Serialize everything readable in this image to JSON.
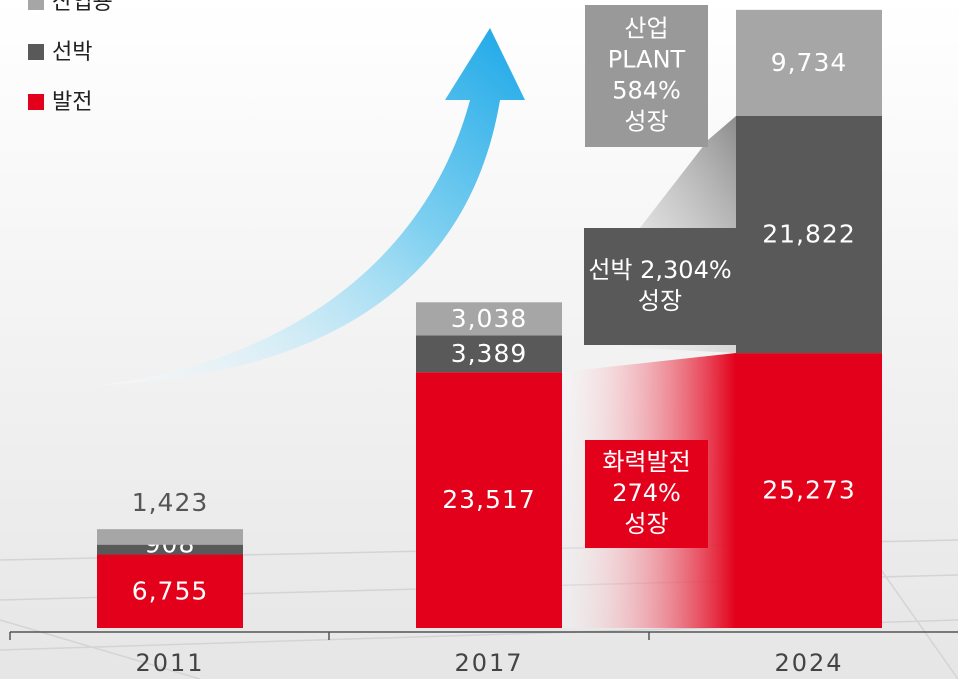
{
  "chart_data": {
    "type": "stacked_bar",
    "categories": [
      "2011",
      "2017",
      "2024"
    ],
    "series": [
      {
        "name": "발전",
        "color": "#e2001a",
        "values": [
          6755,
          23517,
          25273
        ],
        "value_labels": [
          "6,755",
          "23,517",
          "25,273"
        ]
      },
      {
        "name": "선박",
        "color": "#595959",
        "values": [
          908,
          3389,
          21822
        ],
        "value_labels": [
          "908",
          "3,389",
          "21,822"
        ]
      },
      {
        "name": "산업용",
        "color": "#a6a6a6",
        "values": [
          1423,
          3038,
          9734
        ],
        "value_labels": [
          "1,423",
          "3,038",
          "9,734"
        ]
      }
    ],
    "ylim": [
      0,
      57000
    ],
    "annotations": [
      [
        "산업",
        "PLANT",
        "584%",
        "성장"
      ],
      [
        "선박 2,304%",
        "성장"
      ],
      [
        "화력발전",
        "274%",
        "성장"
      ]
    ]
  }
}
